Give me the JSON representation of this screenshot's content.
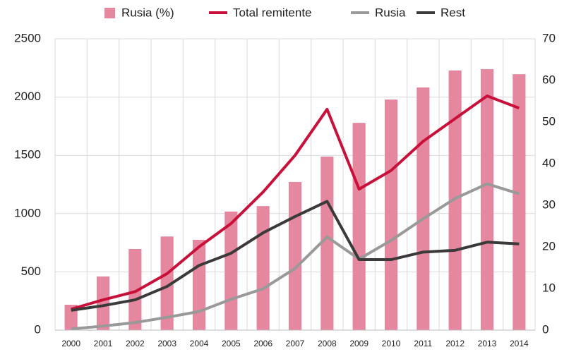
{
  "chart_data": {
    "type": "bar",
    "categories": [
      "2000",
      "2001",
      "2002",
      "2003",
      "2004",
      "2005",
      "2006",
      "2007",
      "2008",
      "2009",
      "2010",
      "2011",
      "2012",
      "2013",
      "2014"
    ],
    "series": [
      {
        "name": "Rusia (%)",
        "type": "bar",
        "axis": "y2",
        "color": "#e5879e",
        "values": [
          6.1,
          12.9,
          19.5,
          22.5,
          21.7,
          28.5,
          29.8,
          35.6,
          41.7,
          49.8,
          55.4,
          58.3,
          62.4,
          62.7,
          61.5
        ]
      },
      {
        "name": "Total remitente",
        "type": "line",
        "color": "#c8103a",
        "values": [
          180,
          260,
          330,
          485,
          715,
          915,
          1185,
          1500,
          1895,
          1210,
          1370,
          1620,
          1815,
          2010,
          1905
        ]
      },
      {
        "name": "Rusia",
        "type": "line",
        "color": "#999999",
        "values": [
          10,
          35,
          65,
          110,
          160,
          265,
          355,
          530,
          800,
          610,
          770,
          955,
          1130,
          1255,
          1170
        ]
      },
      {
        "name": "Rest",
        "type": "line",
        "color": "#3a3a3a",
        "values": [
          170,
          210,
          260,
          375,
          555,
          660,
          835,
          975,
          1105,
          605,
          605,
          670,
          685,
          755,
          740
        ]
      }
    ],
    "ylim": [
      0,
      2500
    ],
    "yticks": [
      0,
      500,
      1000,
      1500,
      2000,
      2500
    ],
    "y2lim": [
      0,
      70
    ],
    "y2ticks": [
      0,
      10,
      20,
      30,
      40,
      50,
      60,
      70
    ],
    "grid": true,
    "legend": "top"
  }
}
